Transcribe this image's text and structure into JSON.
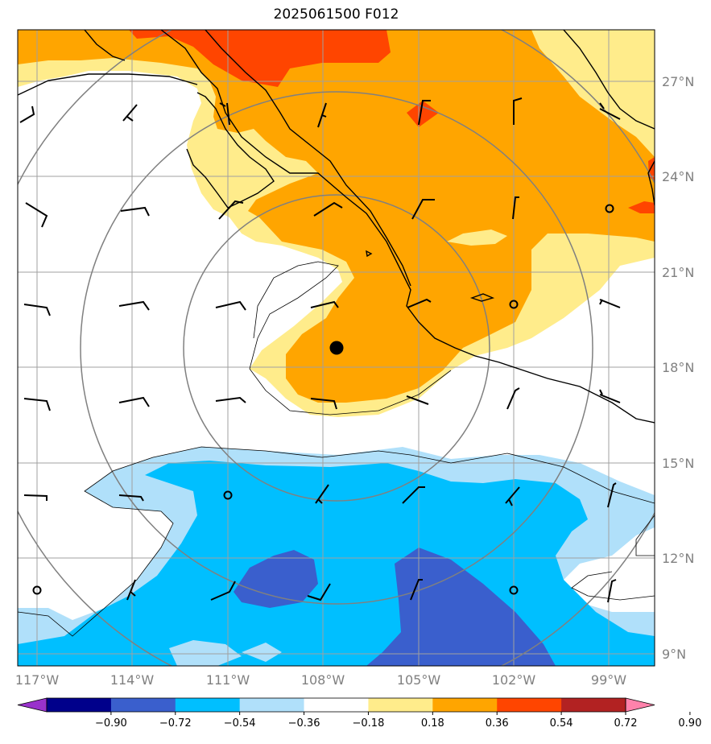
{
  "title": "2025061500 F012",
  "map": {
    "lon_labels": [
      "117°W",
      "114°W",
      "111°W",
      "108°W",
      "105°W",
      "102°W",
      "99°W"
    ],
    "lon_values": [
      -117,
      -114,
      -111,
      -108,
      -105,
      -102,
      -99
    ],
    "lat_labels": [
      "27°N",
      "24°N",
      "21°N",
      "18°N",
      "15°N",
      "12°N",
      "9°N"
    ],
    "lat_values": [
      27,
      24,
      21,
      18,
      15,
      12,
      9
    ],
    "storm_center": {
      "lon": -107.6,
      "lat": 18.6
    },
    "colors": {
      "neg_090": "#9932cc",
      "neg_072": "#00008b",
      "neg_054": "#3a5fcd",
      "neg_036": "#00bfff",
      "neg_018": "#b0e0fa",
      "neutral": "#ffffff",
      "pos_018": "#ffec8b",
      "pos_036": "#ffa500",
      "pos_054": "#ff4500",
      "pos_072": "#b22222",
      "pos_090": "#ff82ab"
    }
  },
  "colorbar": {
    "tick_labels": [
      "−0.90",
      "−0.72",
      "−0.54",
      "−0.36",
      "−0.18",
      "0.18",
      "0.36",
      "0.54",
      "0.72",
      "0.90"
    ],
    "levels": [
      -0.9,
      -0.72,
      -0.54,
      -0.36,
      -0.18,
      0.18,
      0.36,
      0.54,
      0.72,
      0.9
    ],
    "colors": [
      "#9932cc",
      "#00008b",
      "#3a5fcd",
      "#00bfff",
      "#b0e0fa",
      "#ffffff",
      "#ffec8b",
      "#ffa500",
      "#ff4500",
      "#b22222",
      "#ff82ab"
    ]
  }
}
